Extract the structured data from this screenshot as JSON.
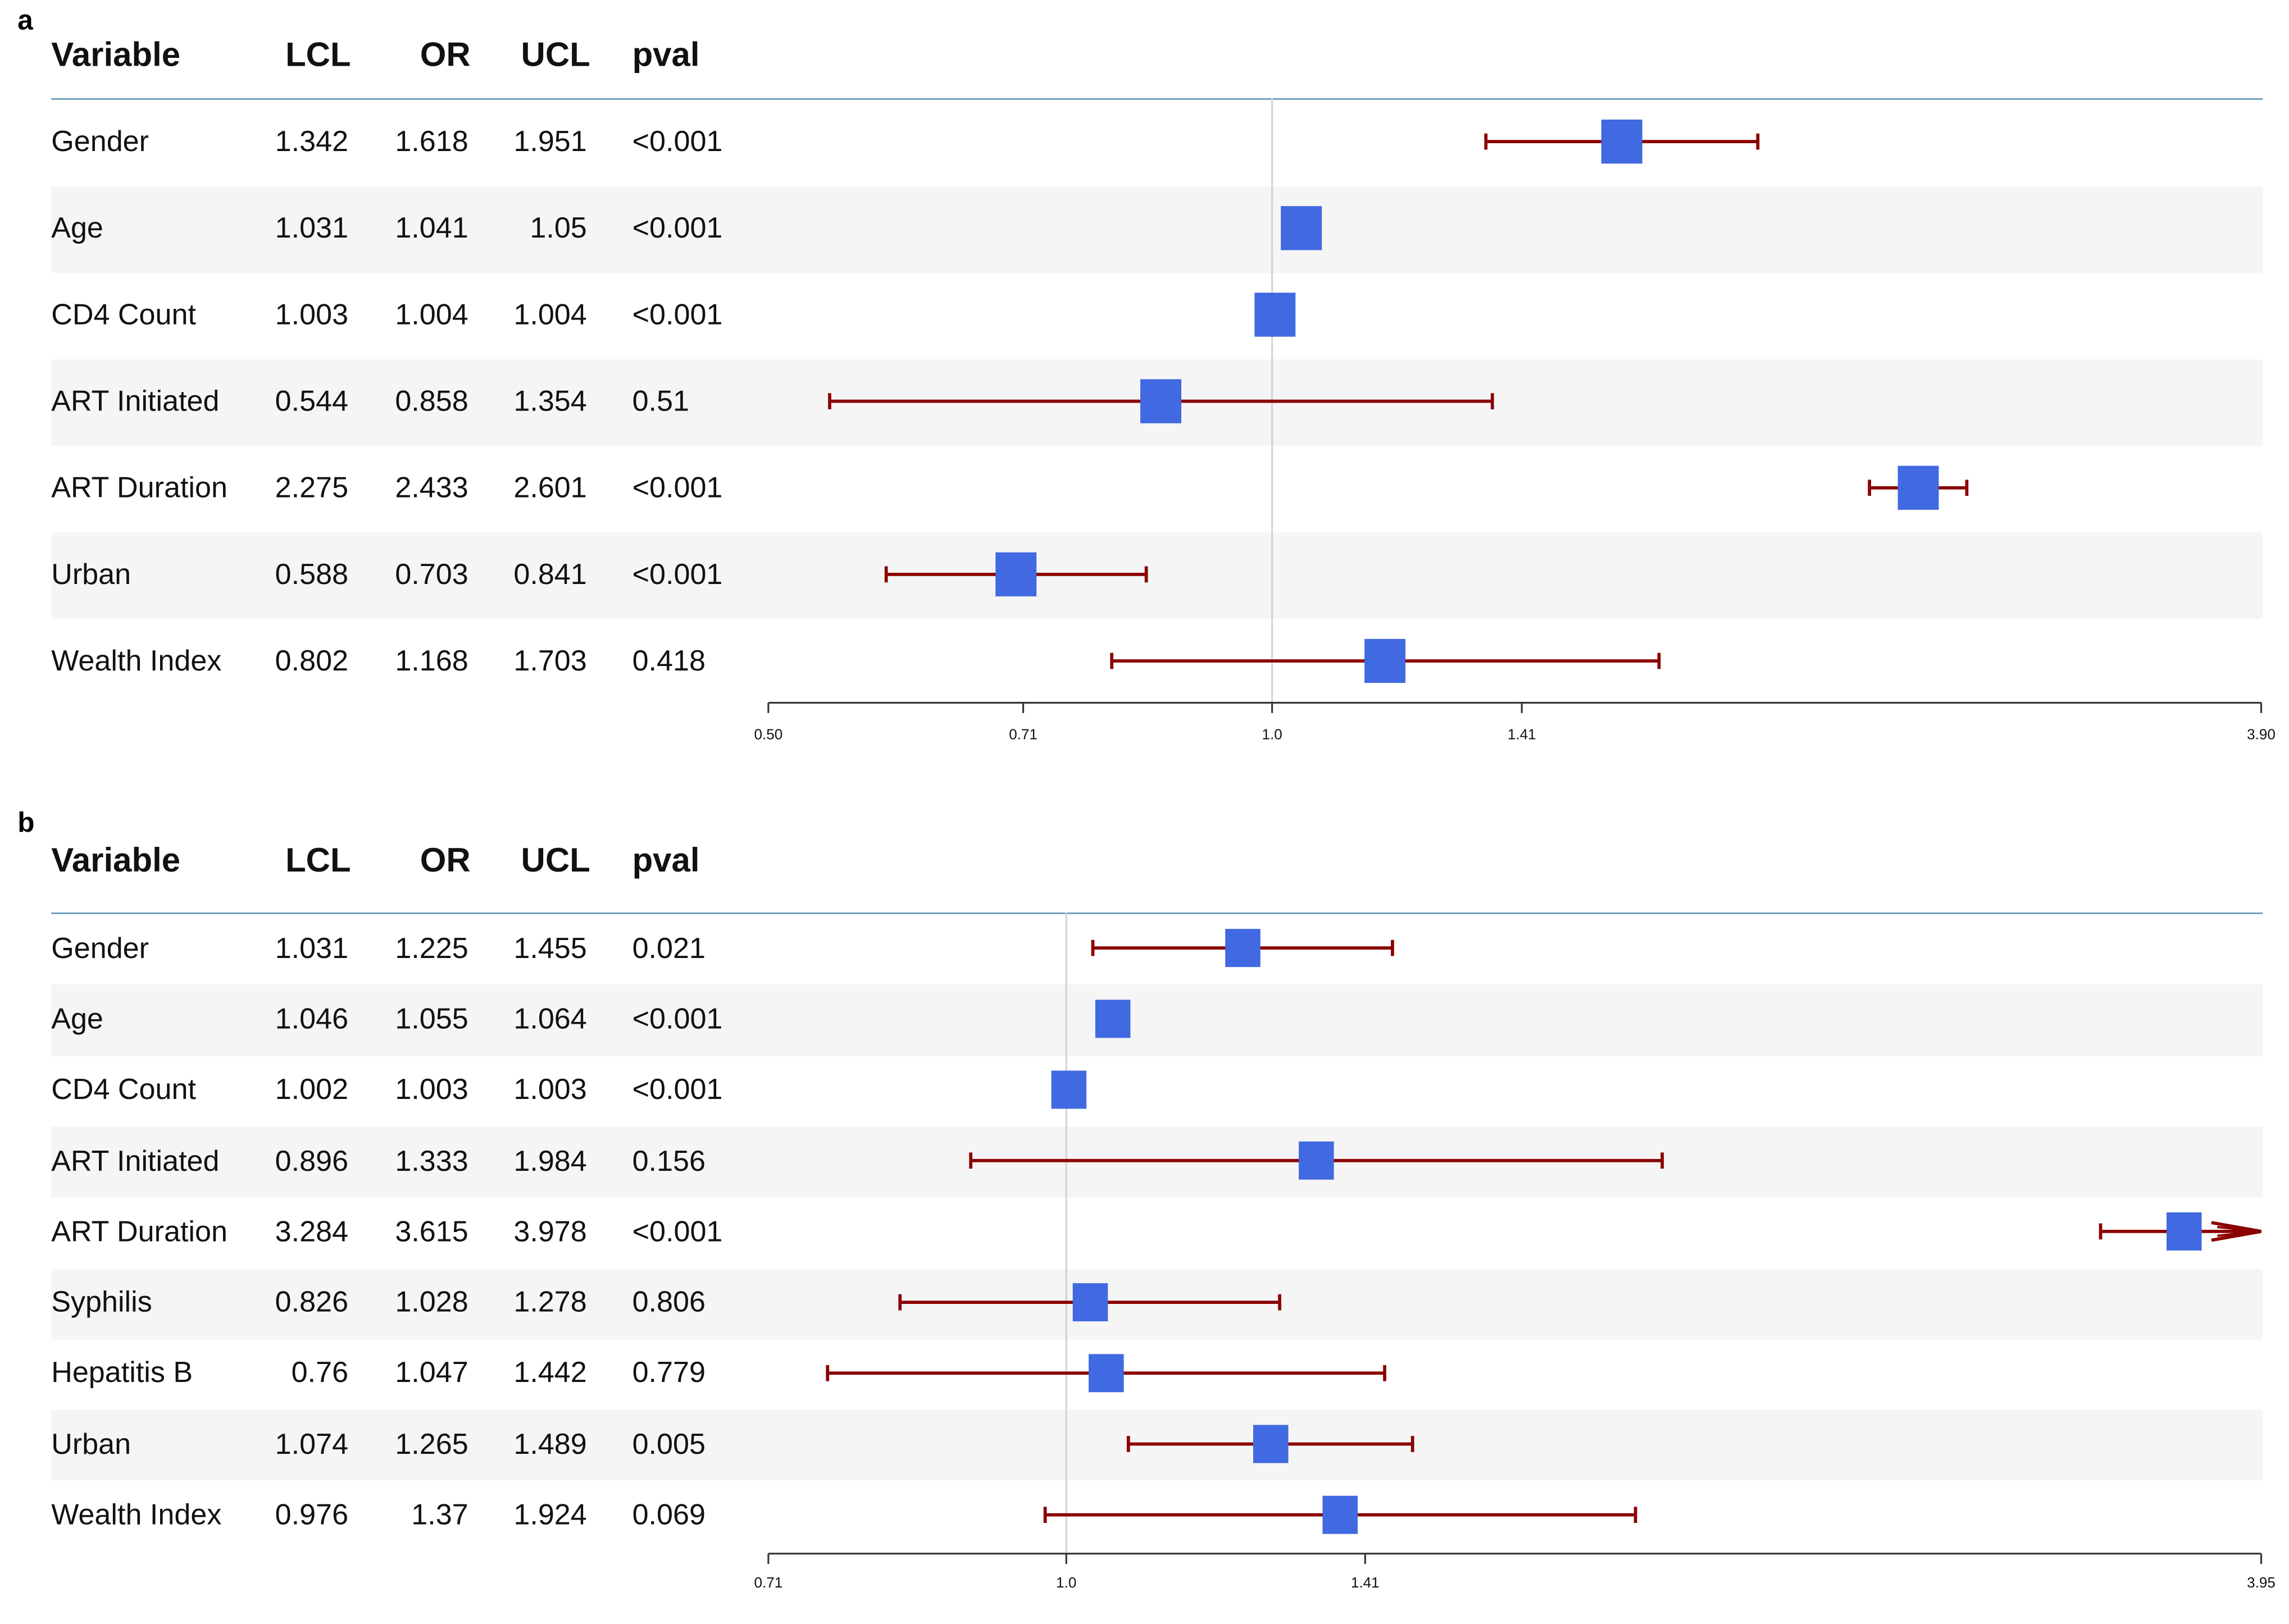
{
  "headers": {
    "variable": "Variable",
    "lcl": "LCL",
    "or": "OR",
    "ucl": "UCL",
    "pval": "pval"
  },
  "colors": {
    "box": "#4169e1",
    "whisker": "#8b0000",
    "ref_line": "#d3d3d3",
    "header_rule": "#5e96b4",
    "row_shade": "#f5f5f5"
  },
  "chart_data": [
    {
      "panel": "a",
      "type": "forest",
      "xscale": "log",
      "xlim": [
        0.5,
        3.9
      ],
      "ref_value": 1.0,
      "xticks": [
        "0.50",
        "0.71",
        "1.0",
        "1.41",
        "3.90"
      ],
      "rows": [
        {
          "variable": "Gender",
          "lcl": "1.342",
          "or": "1.618",
          "ucl": "1.951",
          "pval": "<0.001"
        },
        {
          "variable": "Age",
          "lcl": "1.031",
          "or": "1.041",
          "ucl": "1.05",
          "pval": "<0.001"
        },
        {
          "variable": "CD4 Count",
          "lcl": "1.003",
          "or": "1.004",
          "ucl": "1.004",
          "pval": "<0.001"
        },
        {
          "variable": "ART Initiated",
          "lcl": "0.544",
          "or": "0.858",
          "ucl": "1.354",
          "pval": "0.51"
        },
        {
          "variable": "ART Duration",
          "lcl": "2.275",
          "or": "2.433",
          "ucl": "2.601",
          "pval": "<0.001"
        },
        {
          "variable": "Urban",
          "lcl": "0.588",
          "or": "0.703",
          "ucl": "0.841",
          "pval": "<0.001"
        },
        {
          "variable": "Wealth Index",
          "lcl": "0.802",
          "or": "1.168",
          "ucl": "1.703",
          "pval": "0.418"
        }
      ]
    },
    {
      "panel": "b",
      "type": "forest",
      "xscale": "log",
      "xlim": [
        0.71,
        3.95
      ],
      "ref_value": 1.0,
      "xticks": [
        "0.71",
        "1.0",
        "1.41",
        "3.95"
      ],
      "rows": [
        {
          "variable": "Gender",
          "lcl": "1.031",
          "or": "1.225",
          "ucl": "1.455",
          "pval": "0.021"
        },
        {
          "variable": "Age",
          "lcl": "1.046",
          "or": "1.055",
          "ucl": "1.064",
          "pval": "<0.001"
        },
        {
          "variable": "CD4 Count",
          "lcl": "1.002",
          "or": "1.003",
          "ucl": "1.003",
          "pval": "<0.001"
        },
        {
          "variable": "ART Initiated",
          "lcl": "0.896",
          "or": "1.333",
          "ucl": "1.984",
          "pval": "0.156"
        },
        {
          "variable": "ART Duration",
          "lcl": "3.284",
          "or": "3.615",
          "ucl": "3.978",
          "pval": "<0.001"
        },
        {
          "variable": "Syphilis",
          "lcl": "0.826",
          "or": "1.028",
          "ucl": "1.278",
          "pval": "0.806"
        },
        {
          "variable": "Hepatitis B",
          "lcl": "0.76",
          "or": "1.047",
          "ucl": "1.442",
          "pval": "0.779"
        },
        {
          "variable": "Urban",
          "lcl": "1.074",
          "or": "1.265",
          "ucl": "1.489",
          "pval": "0.005"
        },
        {
          "variable": "Wealth Index",
          "lcl": "0.976",
          "or": "1.37",
          "ucl": "1.924",
          "pval": "0.069"
        }
      ]
    }
  ]
}
